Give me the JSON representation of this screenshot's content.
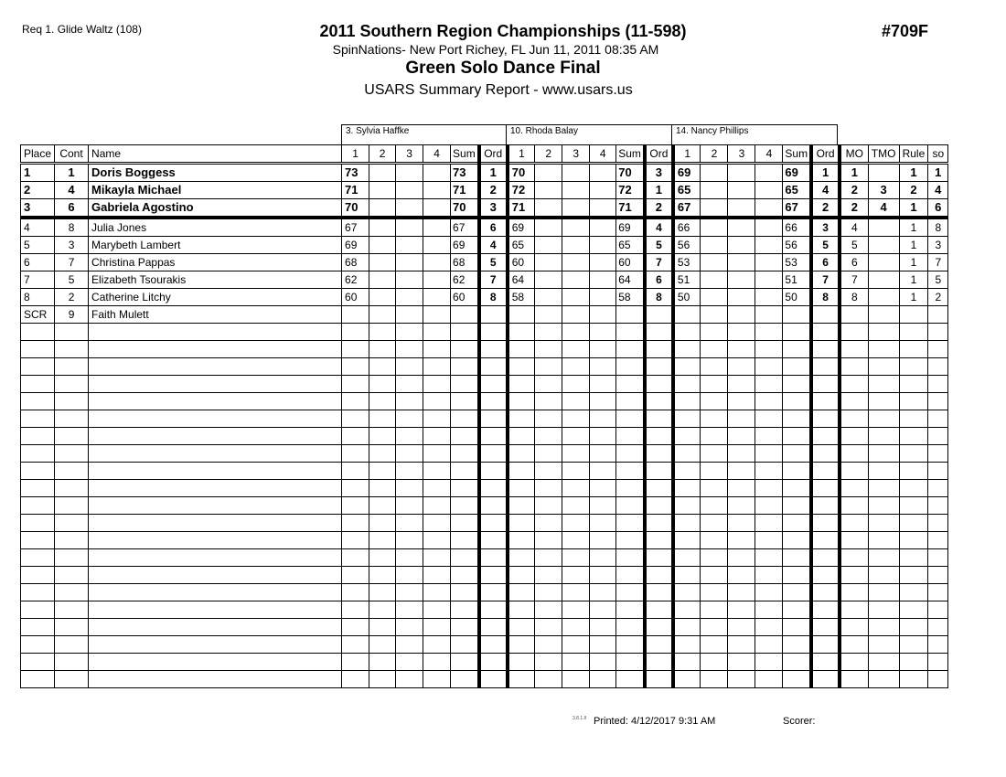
{
  "header": {
    "request": "Req 1.  Glide Waltz (108)",
    "title": "2011 Southern Region Championships (11-598)",
    "subtitle": "SpinNations- New Port Richey, FL  Jun 11, 2011  08:35 AM",
    "event": "Green Solo Dance Final",
    "report": "USARS Summary Report - www.usars.us",
    "event_number": "#709F"
  },
  "judges": [
    "3.  Sylvia Haffke",
    "10.  Rhoda Balay",
    "14.  Nancy Phillips"
  ],
  "columns": {
    "place": "Place",
    "cont": "Cont",
    "name": "Name",
    "judge_cols": [
      "1",
      "2",
      "3",
      "4",
      "Sum",
      "Ord"
    ],
    "mo": "MO",
    "tmo": "TMO",
    "rule": "Rule",
    "so": "so"
  },
  "rows": [
    {
      "place": "1",
      "cont": "1",
      "name": "Doris Boggess",
      "scores": [
        [
          "73",
          "",
          "",
          "",
          "73",
          "1"
        ],
        [
          "70",
          "",
          "",
          "",
          "70",
          "3"
        ],
        [
          "69",
          "",
          "",
          "",
          "69",
          "1"
        ]
      ],
      "mo": "1",
      "tmo": "",
      "rule": "1",
      "so": "1"
    },
    {
      "place": "2",
      "cont": "4",
      "name": "Mikayla Michael",
      "scores": [
        [
          "71",
          "",
          "",
          "",
          "71",
          "2"
        ],
        [
          "72",
          "",
          "",
          "",
          "72",
          "1"
        ],
        [
          "65",
          "",
          "",
          "",
          "65",
          "4"
        ]
      ],
      "mo": "2",
      "tmo": "3",
      "rule": "2",
      "so": "4"
    },
    {
      "place": "3",
      "cont": "6",
      "name": "Gabriela Agostino",
      "scores": [
        [
          "70",
          "",
          "",
          "",
          "70",
          "3"
        ],
        [
          "71",
          "",
          "",
          "",
          "71",
          "2"
        ],
        [
          "67",
          "",
          "",
          "",
          "67",
          "2"
        ]
      ],
      "mo": "2",
      "tmo": "4",
      "rule": "1",
      "so": "6"
    },
    {
      "place": "4",
      "cont": "8",
      "name": "Julia Jones",
      "scores": [
        [
          "67",
          "",
          "",
          "",
          "67",
          "6"
        ],
        [
          "69",
          "",
          "",
          "",
          "69",
          "4"
        ],
        [
          "66",
          "",
          "",
          "",
          "66",
          "3"
        ]
      ],
      "mo": "4",
      "tmo": "",
      "rule": "1",
      "so": "8"
    },
    {
      "place": "5",
      "cont": "3",
      "name": "Marybeth Lambert",
      "scores": [
        [
          "69",
          "",
          "",
          "",
          "69",
          "4"
        ],
        [
          "65",
          "",
          "",
          "",
          "65",
          "5"
        ],
        [
          "56",
          "",
          "",
          "",
          "56",
          "5"
        ]
      ],
      "mo": "5",
      "tmo": "",
      "rule": "1",
      "so": "3"
    },
    {
      "place": "6",
      "cont": "7",
      "name": "Christina Pappas",
      "scores": [
        [
          "68",
          "",
          "",
          "",
          "68",
          "5"
        ],
        [
          "60",
          "",
          "",
          "",
          "60",
          "7"
        ],
        [
          "53",
          "",
          "",
          "",
          "53",
          "6"
        ]
      ],
      "mo": "6",
      "tmo": "",
      "rule": "1",
      "so": "7"
    },
    {
      "place": "7",
      "cont": "5",
      "name": "Elizabeth Tsourakis",
      "scores": [
        [
          "62",
          "",
          "",
          "",
          "62",
          "7"
        ],
        [
          "64",
          "",
          "",
          "",
          "64",
          "6"
        ],
        [
          "51",
          "",
          "",
          "",
          "51",
          "7"
        ]
      ],
      "mo": "7",
      "tmo": "",
      "rule": "1",
      "so": "5"
    },
    {
      "place": "8",
      "cont": "2",
      "name": "Catherine Litchy",
      "scores": [
        [
          "60",
          "",
          "",
          "",
          "60",
          "8"
        ],
        [
          "58",
          "",
          "",
          "",
          "58",
          "8"
        ],
        [
          "50",
          "",
          "",
          "",
          "50",
          "8"
        ]
      ],
      "mo": "8",
      "tmo": "",
      "rule": "1",
      "so": "2"
    },
    {
      "place": "SCR",
      "cont": "9",
      "name": "Faith Mulett",
      "scores": [
        [
          "",
          "",
          "",
          "",
          "",
          ""
        ],
        [
          "",
          "",
          "",
          "",
          "",
          ""
        ],
        [
          "",
          "",
          "",
          "",
          "",
          ""
        ]
      ],
      "mo": "",
      "tmo": "",
      "rule": "",
      "so": ""
    }
  ],
  "footer": {
    "version": "3.8.1.8",
    "printed": "Printed:  4/12/2017  9:31 AM",
    "scorer": "Scorer:"
  }
}
